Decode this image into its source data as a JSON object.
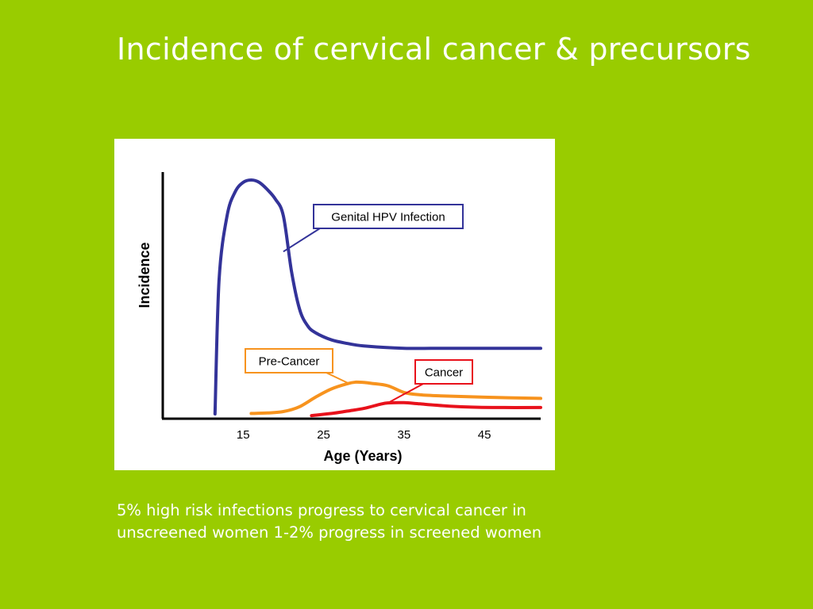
{
  "slide": {
    "title": "Incidence of cervical cancer & precursors",
    "caption_lines": [
      "5% high risk infections progress to cervical cancer in",
      "unscreened women 1-2% progress in screened women"
    ]
  },
  "colors": {
    "background": "#99cc00",
    "hpv": "#333399",
    "precancer": "#f7931e",
    "cancer": "#e8111b"
  },
  "chart_data": {
    "type": "line",
    "xlabel": "Age (Years)",
    "ylabel": "Incidence",
    "x_ticks": [
      15,
      25,
      35,
      45
    ],
    "xlim": [
      5,
      52
    ],
    "ylim": [
      0,
      100
    ],
    "grid": false,
    "series": [
      {
        "name": "Genital HPV Infection",
        "color": "#333399",
        "x": [
          11.5,
          12,
          13,
          14,
          15,
          16,
          17,
          18,
          19,
          20,
          21,
          22,
          23,
          24,
          26,
          28,
          30,
          35,
          40,
          45,
          52
        ],
        "y": [
          2,
          58,
          85,
          95,
          99,
          100,
          99,
          96,
          92,
          85,
          62,
          46,
          39,
          36,
          33,
          31.5,
          30.5,
          29.5,
          29.5,
          29.5,
          29.5
        ]
      },
      {
        "name": "Pre-Cancer",
        "color": "#f7931e",
        "x": [
          16,
          18,
          20,
          22,
          24,
          26,
          28,
          29,
          30,
          31,
          33,
          35,
          37,
          40,
          45,
          52
        ],
        "y": [
          2.2,
          2.4,
          3,
          5,
          9,
          12.5,
          14.7,
          15.3,
          15.2,
          14.8,
          13.8,
          11,
          10,
          9.5,
          9,
          8.5
        ]
      },
      {
        "name": "Cancer",
        "color": "#e8111b",
        "x": [
          23.5,
          26,
          28,
          30,
          32,
          33,
          35,
          37,
          40,
          43,
          46,
          52
        ],
        "y": [
          1.3,
          2.2,
          3.2,
          4.3,
          6,
          6.6,
          6.7,
          6.2,
          5.4,
          4.9,
          4.7,
          4.7
        ]
      }
    ],
    "annotations": [
      {
        "series": "Genital HPV Infection",
        "text": "Genital HPV Infection",
        "point_x": 20,
        "point_y": 70
      },
      {
        "series": "Pre-Cancer",
        "text": "Pre-Cancer",
        "point_x": 28,
        "point_y": 15
      },
      {
        "series": "Cancer",
        "text": "Cancer",
        "point_x": 33,
        "point_y": 6.6
      }
    ]
  }
}
